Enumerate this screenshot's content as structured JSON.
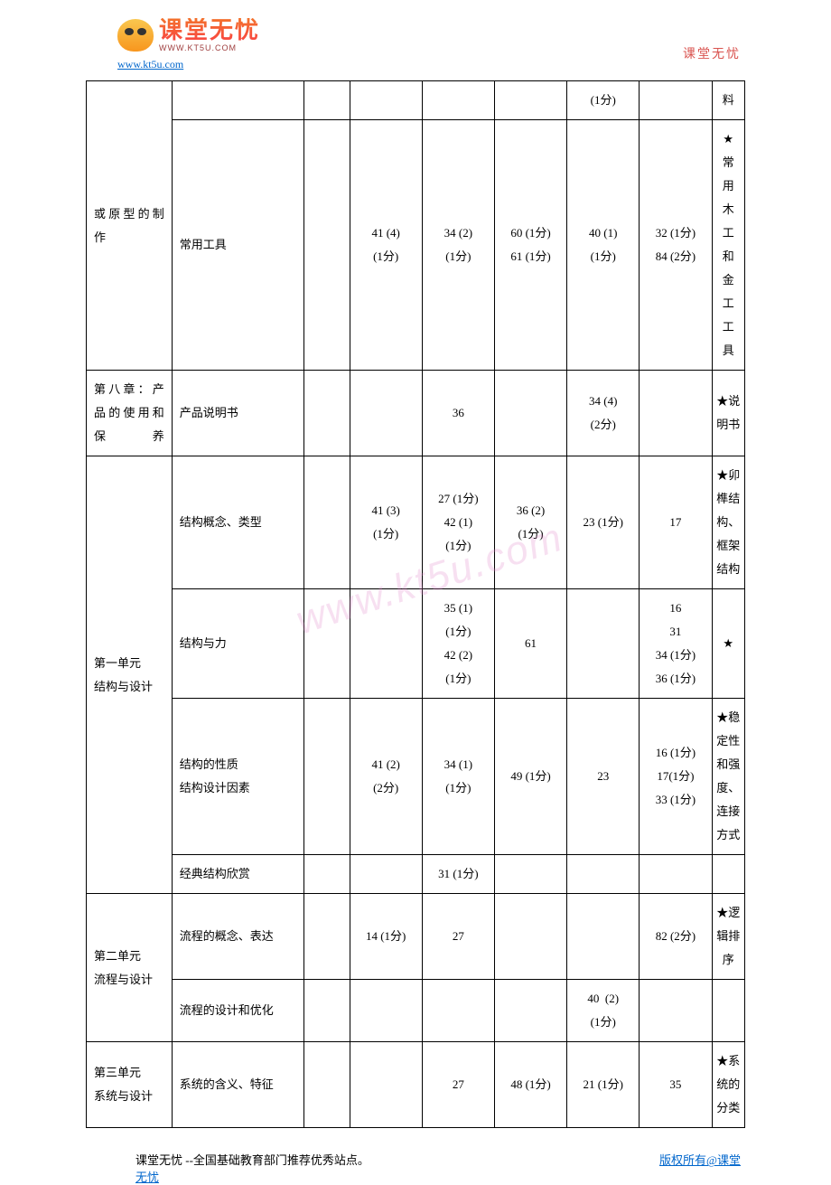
{
  "header": {
    "logo_cn": "课堂无忧",
    "logo_en": "WWW.KT5U.COM",
    "url": "www.kt5u.com",
    "right_text": "课堂无忧"
  },
  "watermark": "www.kt5u.com",
  "table": {
    "rows": {
      "r1": {
        "chapter": "或原型的制作",
        "topic": "",
        "c1": "",
        "c2": "",
        "c3": "",
        "c4": "",
        "c5": "(1分)",
        "c6": "",
        "note": "料"
      },
      "r2": {
        "topic": "常用工具",
        "c1": "",
        "c2": "41 (4)(1分)",
        "c3": "34 (2)(1分)",
        "c4": "60 (1分)61 (1分)",
        "c5": "40 (1)(1分)",
        "c6": "32 (1分)84 (2分)",
        "note": "★常用木工和金工工具"
      },
      "r3": {
        "chapter": "第八章：产品的使用和保养",
        "topic": "产品说明书",
        "c1": "",
        "c2": "",
        "c3": "36",
        "c4": "",
        "c5": "34 (4)(2分)",
        "c6": "",
        "note": "★说明书"
      },
      "r4": {
        "chapter": "第一单元结构与设计",
        "topic": "结构概念、类型",
        "c1": "",
        "c2": "41 (3)(1分)",
        "c3": "27 (1分)42 (1)(1分)",
        "c4": "36 (2)(1分)",
        "c5": "23 (1分)",
        "c6": "17",
        "note": "★卯榫结构、框架结构"
      },
      "r5": {
        "topic": "结构与力",
        "c1": "",
        "c2": "",
        "c3": "35 (1)(1分)42 (2)(1分)",
        "c4": "61",
        "c5": "",
        "c6": "163134 (1分)36 (1分)",
        "note": "★"
      },
      "r6": {
        "topic": "结构的性质结构设计因素",
        "c1": "",
        "c2": "41 (2)(2分)",
        "c3": "34 (1)(1分)",
        "c4": "49 (1分)",
        "c5": "23",
        "c6": "16 (1分)17(1分)33 (1分)",
        "note": "★稳定性和强度、连接方式"
      },
      "r7": {
        "topic": "经典结构欣赏",
        "c1": "",
        "c2": "",
        "c3": "31 (1分)",
        "c4": "",
        "c5": "",
        "c6": "",
        "note": ""
      },
      "r8": {
        "chapter": "第二单元流程与设计",
        "topic": "流程的概念、表达",
        "c1": "",
        "c2": "14 (1分)",
        "c3": "27",
        "c4": "",
        "c5": "",
        "c6": "82 (2分)",
        "note": "★逻辑排序"
      },
      "r9": {
        "topic": "流程的设计和优化",
        "c1": "",
        "c2": "",
        "c3": "",
        "c4": "",
        "c5": "40  (2)(1分)",
        "c6": "",
        "note": ""
      },
      "r10": {
        "chapter": "第三单元系统与设计",
        "topic": "系统的含义、特征",
        "c1": "",
        "c2": "",
        "c3": "27",
        "c4": "48 (1分)",
        "c5": "21 (1分)",
        "c6": "35",
        "note": "★系统的分类"
      }
    }
  },
  "footer": {
    "line1": "课堂无忧 --全国基础教育部门推荐优秀站点。",
    "link1": "版权所有@课堂",
    "link2": "无忧"
  }
}
